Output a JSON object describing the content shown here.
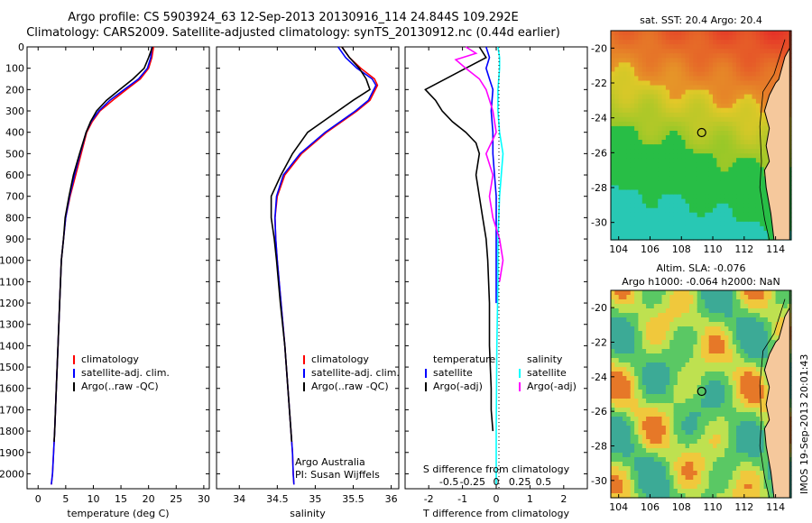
{
  "header": {
    "line1": "Argo profile: CS 5903924_63 12-Sep-2013 20130916_114 24.844S 109.292E",
    "line2": "Climatology: CARS2009. Satellite-adjusted climatology: synTS_20130912.nc (0.44d earlier)"
  },
  "colors": {
    "climatology": "#ff0000",
    "satellite": "#0000ff",
    "argo": "#000000",
    "sal_satellite": "#00ffff",
    "sal_argo": "#ff00ff"
  },
  "chart_data": [
    {
      "id": "temperature",
      "type": "line",
      "xlabel": "temperature (deg C)",
      "ylabel": "",
      "xlim": [
        -2,
        31
      ],
      "ylim": [
        2070,
        0
      ],
      "y_reversed": true,
      "xticks": [
        0,
        5,
        10,
        15,
        20,
        25,
        30
      ],
      "yticks": [
        0,
        100,
        200,
        300,
        400,
        500,
        600,
        700,
        800,
        900,
        1000,
        1100,
        1200,
        1300,
        1400,
        1500,
        1600,
        1700,
        1800,
        1900,
        2000
      ],
      "legend": [
        "climatology",
        "satellite-adj. clim.",
        "Argo(..raw -QC)"
      ],
      "legend_position": "lower-center",
      "series": [
        {
          "name": "climatology",
          "color": "#ff0000",
          "x": [
            20.9,
            20.6,
            20,
            18.5,
            16,
            13.5,
            11.2,
            9.8,
            8.8,
            7.8,
            6.8,
            5.8,
            5,
            4.6,
            4.2,
            3.9,
            3.6,
            3.3,
            3,
            2.8,
            2.6,
            2.4
          ],
          "y": [
            0,
            50,
            100,
            150,
            200,
            250,
            300,
            350,
            400,
            500,
            600,
            700,
            800,
            900,
            1000,
            1200,
            1400,
            1600,
            1800,
            1900,
            2000,
            2050
          ]
        },
        {
          "name": "satellite-adj. clim.",
          "color": "#0000ff",
          "x": [
            20.6,
            20.4,
            19.8,
            18.2,
            15.6,
            13,
            11,
            9.6,
            8.7,
            7.6,
            6.6,
            5.7,
            5,
            4.6,
            4.2,
            3.9,
            3.6,
            3.3,
            3,
            2.8,
            2.6,
            2.4
          ],
          "y": [
            0,
            50,
            100,
            150,
            200,
            250,
            300,
            350,
            400,
            500,
            600,
            700,
            800,
            900,
            1000,
            1200,
            1400,
            1600,
            1800,
            1900,
            2000,
            2050
          ]
        },
        {
          "name": "Argo(..raw -QC)",
          "color": "#000000",
          "x": [
            20.7,
            20,
            19.2,
            17.2,
            14.8,
            12.4,
            10.6,
            9.5,
            8.7,
            7.5,
            6.4,
            5.6,
            4.9,
            4.6,
            4.2,
            3.9,
            3.6,
            3.3,
            3,
            2.9
          ],
          "y": [
            0,
            50,
            100,
            150,
            200,
            250,
            300,
            350,
            400,
            500,
            600,
            700,
            800,
            900,
            1000,
            1200,
            1400,
            1600,
            1800,
            1850
          ]
        }
      ]
    },
    {
      "id": "salinity",
      "type": "line",
      "xlabel": "salinity",
      "ylabel": "",
      "xlim": [
        33.7,
        36.1
      ],
      "ylim": [
        2070,
        0
      ],
      "y_reversed": true,
      "xticks": [
        34,
        34.5,
        35,
        35.5,
        36
      ],
      "legend": [
        "climatology",
        "satellite-adj. clim.",
        "Argo(..raw -QC)"
      ],
      "legend_position": "lower-center",
      "annotation": [
        "Argo Australia",
        "PI: Susan Wijffels"
      ],
      "series": [
        {
          "name": "climatology",
          "color": "#ff0000",
          "x": [
            35.35,
            35.45,
            35.6,
            35.78,
            35.82,
            35.72,
            35.55,
            35.35,
            35.15,
            34.82,
            34.6,
            34.5,
            34.47,
            34.48,
            34.5,
            34.55,
            34.6,
            34.64,
            34.68,
            34.7,
            34.71,
            34.72
          ],
          "y": [
            0,
            50,
            100,
            150,
            180,
            250,
            300,
            350,
            400,
            500,
            600,
            700,
            800,
            900,
            1000,
            1200,
            1400,
            1600,
            1800,
            1900,
            2000,
            2050
          ]
        },
        {
          "name": "satellite-adj. clim.",
          "color": "#0000ff",
          "x": [
            35.3,
            35.4,
            35.55,
            35.75,
            35.8,
            35.7,
            35.53,
            35.33,
            35.13,
            34.8,
            34.58,
            34.49,
            34.47,
            34.48,
            34.5,
            34.55,
            34.6,
            34.64,
            34.68,
            34.7,
            34.71,
            34.72
          ],
          "y": [
            0,
            50,
            100,
            150,
            180,
            250,
            300,
            350,
            400,
            500,
            600,
            700,
            800,
            900,
            1000,
            1200,
            1400,
            1600,
            1800,
            1900,
            2000,
            2050
          ]
        },
        {
          "name": "Argo(..raw -QC)",
          "color": "#000000",
          "x": [
            35.35,
            35.45,
            35.58,
            35.67,
            35.72,
            35.5,
            35.3,
            35.1,
            34.9,
            34.7,
            34.55,
            34.42,
            34.42,
            34.46,
            34.49,
            34.54,
            34.6,
            34.64,
            34.68,
            34.69
          ],
          "y": [
            0,
            50,
            100,
            150,
            200,
            250,
            300,
            350,
            400,
            500,
            600,
            700,
            800,
            900,
            1000,
            1200,
            1400,
            1600,
            1800,
            1850
          ]
        }
      ]
    },
    {
      "id": "difference",
      "type": "line",
      "xlabel": "T difference from climatology",
      "xlabel_top": "S difference from climatology",
      "xlim": [
        -2.7,
        2.7
      ],
      "ylim": [
        2070,
        0
      ],
      "y_reversed": true,
      "xticks": [
        -2,
        -1,
        0,
        1,
        2
      ],
      "s_xticks": [
        "-0.5",
        "-0.25",
        "0",
        "0.25",
        "0.5"
      ],
      "legend_left": {
        "header": "temperature",
        "items": [
          "satellite",
          "Argo(-adj)"
        ]
      },
      "legend_right": {
        "header": "salinity",
        "items": [
          "satellite",
          "Argo(-adj)"
        ]
      },
      "series": [
        {
          "name": "temperature satellite",
          "color": "#0000ff",
          "x": [
            -0.3,
            -0.2,
            -0.3,
            -0.2,
            -0.1,
            -0.15,
            -0.1,
            -0.1,
            -0.05,
            0,
            0,
            0,
            0,
            0
          ],
          "y": [
            0,
            50,
            100,
            150,
            200,
            300,
            400,
            500,
            600,
            700,
            800,
            900,
            1000,
            1200
          ]
        },
        {
          "name": "temperature Argo(-adj)",
          "color": "#000000",
          "x": [
            -0.5,
            -0.3,
            -2.1,
            -1.8,
            -1.6,
            -1.3,
            -0.9,
            -0.6,
            -0.5,
            -0.6,
            -0.5,
            -0.4,
            -0.3,
            -0.25,
            -0.2,
            -0.2,
            -0.15,
            -0.15,
            -0.1
          ],
          "y": [
            0,
            50,
            200,
            250,
            300,
            350,
            400,
            450,
            500,
            600,
            700,
            800,
            900,
            1000,
            1200,
            1400,
            1600,
            1700,
            1800
          ]
        },
        {
          "name": "salinity satellite",
          "color": "#00ffff",
          "x": [
            0.05,
            0.1,
            0.1,
            0.05,
            0.05,
            0.1,
            0.2,
            0.15,
            0.1,
            0.05,
            0.05,
            0.02,
            0,
            0
          ],
          "y": [
            0,
            50,
            100,
            200,
            300,
            400,
            500,
            600,
            700,
            900,
            1100,
            1400,
            1800,
            2050
          ]
        },
        {
          "name": "salinity Argo(-adj)",
          "color": "#ff00ff",
          "x": [
            -0.9,
            -0.6,
            -1.2,
            -0.9,
            -0.5,
            -0.3,
            -0.1,
            0,
            -0.3,
            -0.1,
            -0.2,
            -0.1,
            0.1,
            0.2,
            0.1
          ],
          "y": [
            0,
            30,
            60,
            100,
            150,
            200,
            300,
            400,
            500,
            600,
            700,
            800,
            900,
            1000,
            1100
          ]
        }
      ]
    },
    {
      "id": "sst-map",
      "type": "heatmap",
      "title": "sat. SST: 20.4 Argo: 20.4",
      "xlim": [
        103.5,
        115
      ],
      "ylim": [
        -31,
        -19
      ],
      "xticks": [
        104,
        106,
        108,
        110,
        112,
        114
      ],
      "yticks": [
        -20,
        -22,
        -24,
        -26,
        -28,
        -30
      ],
      "marker": {
        "lon": 109.292,
        "lat": -24.844
      }
    },
    {
      "id": "sla-map",
      "type": "heatmap",
      "title_line1": "Altim. SLA: -0.076",
      "title_line2": "Argo h1000: -0.064 h2000: NaN",
      "xlim": [
        103.5,
        115
      ],
      "ylim": [
        -31,
        -19
      ],
      "xticks": [
        104,
        106,
        108,
        110,
        112,
        114
      ],
      "yticks": [
        -20,
        -22,
        -24,
        -26,
        -28,
        -30
      ],
      "marker": {
        "lon": 109.292,
        "lat": -24.844
      }
    }
  ],
  "footer": {
    "stamp": "IMOS 19-Sep-2013 20:01:43"
  }
}
